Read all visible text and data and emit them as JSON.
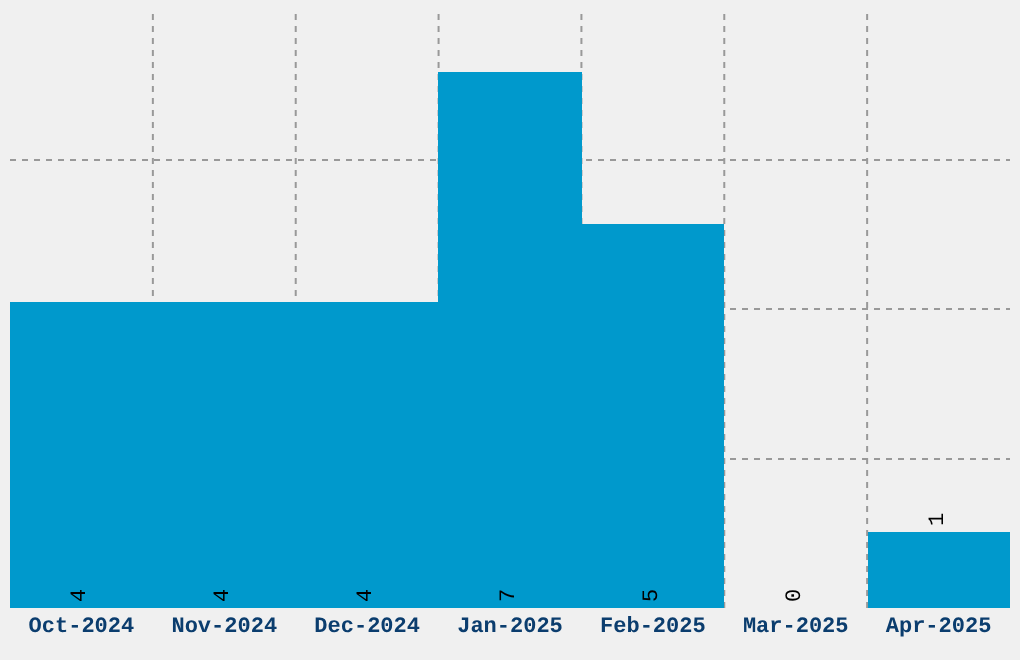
{
  "chart_data": {
    "type": "bar",
    "categories": [
      "Oct-2024",
      "Nov-2024",
      "Dec-2024",
      "Jan-2025",
      "Feb-2025",
      "Mar-2025",
      "Apr-2025"
    ],
    "values": [
      4,
      4,
      4,
      7,
      5,
      0,
      1
    ],
    "color": "#0099cc",
    "data_labels": true,
    "ylim": [
      0,
      7.8
    ],
    "yticks": [
      {
        "value": 1.95,
        "label": null
      },
      {
        "value": 3.9,
        "label": null
      },
      {
        "value": 5.85,
        "label": null
      }
    ],
    "tick_labels": "x",
    "grid": true,
    "legend": false
  }
}
